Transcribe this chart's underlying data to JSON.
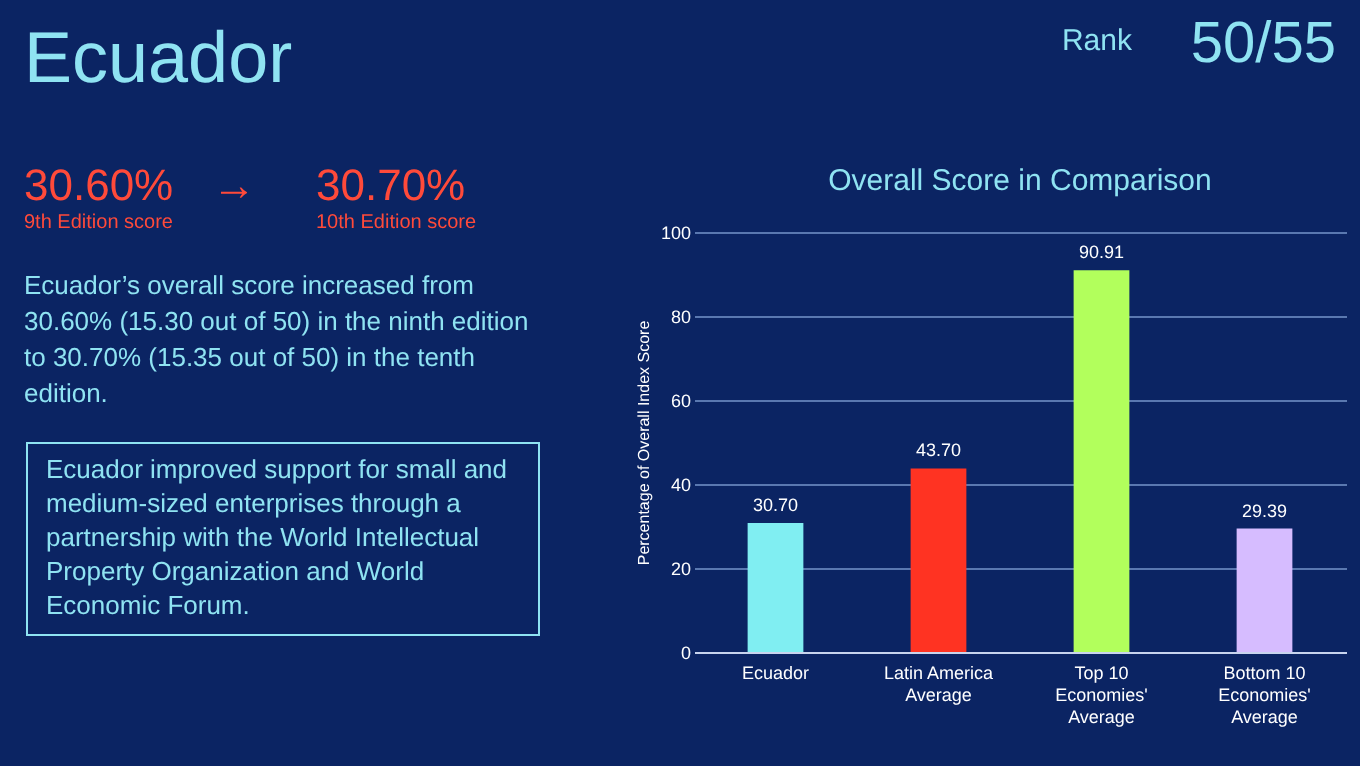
{
  "chart_data": {
    "type": "bar",
    "title": "Overall Score in Comparison",
    "ylabel": "Percentage of Overall Index Score",
    "categories": [
      "Ecuador",
      "Latin America Average",
      "Top 10 Economies' Average",
      "Bottom 10 Economies' Average"
    ],
    "values": [
      30.7,
      43.7,
      90.91,
      29.39
    ],
    "colors": [
      "#80eef2",
      "#ff3322",
      "#b2ff5c",
      "#d6bcff"
    ],
    "value_labels": [
      "30.70",
      "43.70",
      "90.91",
      "29.39"
    ],
    "ylim": [
      0,
      100
    ],
    "yticks": [
      0,
      20,
      40,
      60,
      80,
      100
    ],
    "grid": "y",
    "annotations": [
      "Ecuador",
      "Rank",
      "50/55",
      "30.60%",
      "→",
      "30.70%",
      "9th Edition score",
      "10th Edition score",
      "Ecuador’s overall score increased from 30.60% (15.30 out of 50) in the ninth edition to 30.70% (15.35 out of 50) in the tenth edition.",
      "Ecuador improved support for small and medium-sized enterprises through a partnership with the World Intellectual Property Organization and World Economic Forum."
    ]
  }
}
